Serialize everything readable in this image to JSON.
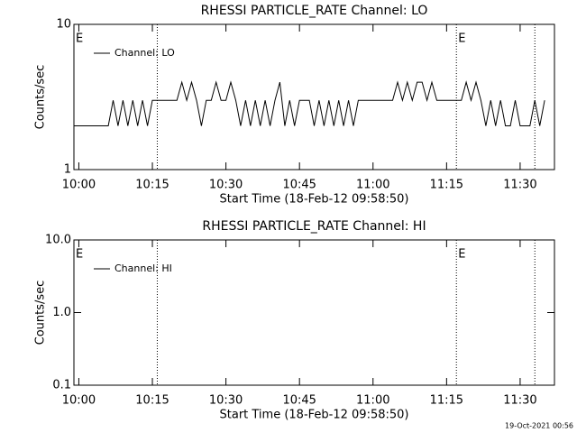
{
  "chart_data": [
    {
      "type": "line",
      "title": "RHESSI PARTICLE_RATE Channel: LO",
      "x_label": "Start Time (18-Feb-12 09:58:50)",
      "y_label": "Counts/sec",
      "log_y": true,
      "ylim": [
        1,
        10
      ],
      "yticks": [
        1,
        10
      ],
      "xlim": [
        "09:59",
        "11:37"
      ],
      "xticks": [
        "10:00",
        "10:15",
        "10:30",
        "10:45",
        "11:00",
        "11:15",
        "11:30"
      ],
      "x": [
        "09:59",
        "10:00",
        "10:01",
        "10:02",
        "10:03",
        "10:04",
        "10:05",
        "10:06",
        "10:07",
        "10:08",
        "10:09",
        "10:10",
        "10:11",
        "10:12",
        "10:13",
        "10:14",
        "10:15",
        "10:16",
        "10:17",
        "10:18",
        "10:19",
        "10:20",
        "10:21",
        "10:22",
        "10:23",
        "10:24",
        "10:25",
        "10:26",
        "10:27",
        "10:28",
        "10:29",
        "10:30",
        "10:31",
        "10:32",
        "10:33",
        "10:34",
        "10:35",
        "10:36",
        "10:37",
        "10:38",
        "10:39",
        "10:40",
        "10:41",
        "10:42",
        "10:43",
        "10:44",
        "10:45",
        "10:46",
        "10:47",
        "10:48",
        "10:49",
        "10:50",
        "10:51",
        "10:52",
        "10:53",
        "10:54",
        "10:55",
        "10:56",
        "10:57",
        "10:58",
        "10:59",
        "11:00",
        "11:01",
        "11:02",
        "11:03",
        "11:04",
        "11:05",
        "11:06",
        "11:07",
        "11:08",
        "11:09",
        "11:10",
        "11:11",
        "11:12",
        "11:13",
        "11:14",
        "11:15",
        "11:16",
        "11:17",
        "11:18",
        "11:19",
        "11:20",
        "11:21",
        "11:22",
        "11:23",
        "11:24",
        "11:25",
        "11:26",
        "11:27",
        "11:28",
        "11:29",
        "11:30",
        "11:31",
        "11:32",
        "11:33",
        "11:34",
        "11:35"
      ],
      "series": [
        {
          "name": "Channel: LO",
          "color": "#000000",
          "values": [
            2,
            2,
            2,
            2,
            2,
            2,
            2,
            2,
            3,
            2,
            3,
            2,
            3,
            2,
            3,
            2,
            3,
            3,
            3,
            3,
            3,
            3,
            4,
            3,
            4,
            3,
            2,
            3,
            3,
            4,
            3,
            3,
            4,
            3,
            2,
            3,
            2,
            3,
            2,
            3,
            2,
            3,
            4,
            2,
            3,
            2,
            3,
            3,
            3,
            2,
            3,
            2,
            3,
            2,
            3,
            2,
            3,
            2,
            3,
            3,
            3,
            3,
            3,
            3,
            3,
            3,
            4,
            3,
            4,
            3,
            4,
            4,
            3,
            4,
            3,
            3,
            3,
            3,
            3,
            3,
            4,
            3,
            4,
            3,
            2,
            3,
            2,
            3,
            2,
            2,
            3,
            2,
            2,
            2,
            3,
            2,
            3
          ]
        }
      ],
      "markers": [
        "10:16",
        "11:17",
        "11:33"
      ],
      "annotations": [
        {
          "x": "09:59",
          "label": "E"
        },
        {
          "x": "11:17",
          "label": "E"
        }
      ]
    },
    {
      "type": "line",
      "title": "RHESSI PARTICLE_RATE Channel: HI",
      "x_label": "Start Time (18-Feb-12 09:58:50)",
      "y_label": "Counts/sec",
      "log_y": true,
      "ylim": [
        0.1,
        10
      ],
      "yticks": [
        {
          "value": 0.1,
          "label": "0.1"
        },
        {
          "value": 1,
          "label": "1.0"
        },
        {
          "value": 10,
          "label": "10.0"
        }
      ],
      "xlim": [
        "09:59",
        "11:37"
      ],
      "xticks": [
        "10:00",
        "10:15",
        "10:30",
        "10:45",
        "11:00",
        "11:15",
        "11:30"
      ],
      "x": [],
      "series": [
        {
          "name": "Channel: HI",
          "color": "#000000",
          "values": []
        }
      ],
      "markers": [
        "10:16",
        "11:17",
        "11:33"
      ],
      "annotations": [
        {
          "x": "09:59",
          "label": "E"
        },
        {
          "x": "11:17",
          "label": "E"
        }
      ]
    }
  ],
  "footer": "19-Oct-2021 00:56"
}
